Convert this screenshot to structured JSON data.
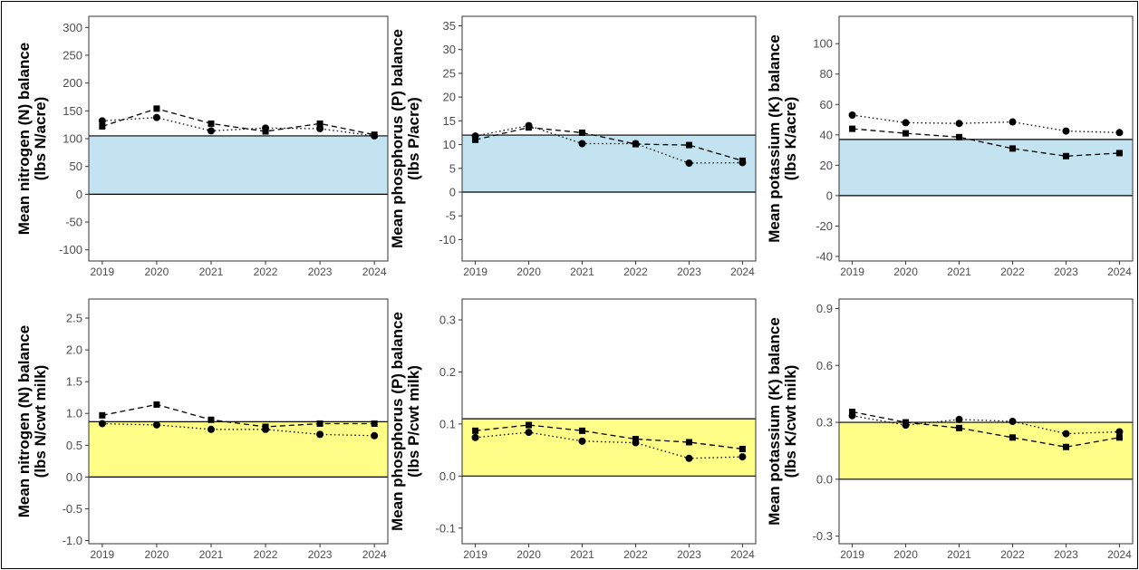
{
  "chart_data": [
    {
      "type": "line",
      "ylabel": "Mean nitrogen (N) balance",
      "ylabel2": "(lbs N/acre)",
      "ylim": [
        -120,
        320
      ],
      "yticks": [
        -100,
        -50,
        0,
        50,
        100,
        150,
        200,
        250,
        300
      ],
      "x": [
        "2019",
        "2020",
        "2021",
        "2022",
        "2023",
        "2024"
      ],
      "band": {
        "from": 0,
        "to": 105,
        "color": "#c3e3f0"
      },
      "series": [
        {
          "marker": "square",
          "line": "dashed",
          "values": [
            122,
            154,
            127,
            113,
            127,
            107
          ]
        },
        {
          "marker": "circle",
          "line": "dotted",
          "values": [
            132,
            138,
            114,
            119,
            118,
            105
          ]
        }
      ]
    },
    {
      "type": "line",
      "ylabel": "Mean phosphorus (P) balance",
      "ylabel2": "(lbs P/acre)",
      "ylim": [
        -14.5,
        37
      ],
      "yticks": [
        -10,
        -5,
        0,
        5,
        10,
        15,
        20,
        25,
        30,
        35
      ],
      "x": [
        "2019",
        "2020",
        "2021",
        "2022",
        "2023",
        "2024"
      ],
      "band": {
        "from": 0,
        "to": 12,
        "color": "#c3e3f0"
      },
      "series": [
        {
          "marker": "square",
          "line": "dashed",
          "values": [
            11,
            13.6,
            12.5,
            10.1,
            9.9,
            6.6
          ]
        },
        {
          "marker": "circle",
          "line": "dotted",
          "values": [
            11.8,
            14,
            10.2,
            10.2,
            6.1,
            6.2
          ]
        }
      ]
    },
    {
      "type": "line",
      "ylabel": "Mean potassium (K) balance",
      "ylabel2": "(lbs K/acre)",
      "ylim": [
        -43,
        118
      ],
      "yticks": [
        -40,
        -20,
        0,
        20,
        40,
        60,
        80,
        100
      ],
      "x": [
        "2019",
        "2020",
        "2021",
        "2022",
        "2023",
        "2024"
      ],
      "band": {
        "from": 0,
        "to": 37,
        "color": "#c3e3f0"
      },
      "series": [
        {
          "marker": "square",
          "line": "dashed",
          "values": [
            44,
            41,
            38.5,
            31,
            26,
            28
          ]
        },
        {
          "marker": "circle",
          "line": "dotted",
          "values": [
            53,
            48,
            47.5,
            48.5,
            42.5,
            41.5
          ]
        }
      ]
    },
    {
      "type": "line",
      "ylabel": "Mean nitrogen (N) balance",
      "ylabel2": "(lbs N/cwt milk)",
      "ylim": [
        -1.05,
        2.8
      ],
      "yticks": [
        -1.0,
        -0.5,
        0.0,
        0.5,
        1.0,
        1.5,
        2.0,
        2.5
      ],
      "x": [
        "2019",
        "2020",
        "2021",
        "2022",
        "2023",
        "2024"
      ],
      "band": {
        "from": 0,
        "to": 0.87,
        "color": "#ffff88"
      },
      "series": [
        {
          "marker": "square",
          "line": "dashed",
          "values": [
            0.97,
            1.14,
            0.9,
            0.79,
            0.84,
            0.84
          ]
        },
        {
          "marker": "circle",
          "line": "dotted",
          "values": [
            0.84,
            0.82,
            0.75,
            0.75,
            0.67,
            0.65
          ]
        }
      ]
    },
    {
      "type": "line",
      "ylabel": "Mean phosphorus (P) balance",
      "ylabel2": "(lbs P/cwt milk)",
      "ylim": [
        -0.13,
        0.34
      ],
      "yticks": [
        -0.1,
        0.0,
        0.1,
        0.2,
        0.3
      ],
      "x": [
        "2019",
        "2020",
        "2021",
        "2022",
        "2023",
        "2024"
      ],
      "band": {
        "from": 0,
        "to": 0.11,
        "color": "#ffff88"
      },
      "series": [
        {
          "marker": "square",
          "line": "dashed",
          "values": [
            0.087,
            0.098,
            0.087,
            0.071,
            0.065,
            0.052
          ]
        },
        {
          "marker": "circle",
          "line": "dotted",
          "values": [
            0.074,
            0.084,
            0.067,
            0.064,
            0.034,
            0.037
          ]
        }
      ]
    },
    {
      "type": "line",
      "ylabel": "Mean potassium (K) balance",
      "ylabel2": "(lbs K/cwt milk)",
      "ylim": [
        -0.34,
        0.95
      ],
      "yticks": [
        -0.3,
        0.0,
        0.3,
        0.6,
        0.9
      ],
      "x": [
        "2019",
        "2020",
        "2021",
        "2022",
        "2023",
        "2024"
      ],
      "band": {
        "from": 0,
        "to": 0.3,
        "color": "#ffff88"
      },
      "series": [
        {
          "marker": "square",
          "line": "dashed",
          "values": [
            0.355,
            0.3,
            0.27,
            0.22,
            0.17,
            0.22
          ]
        },
        {
          "marker": "circle",
          "line": "dotted",
          "values": [
            0.335,
            0.285,
            0.315,
            0.305,
            0.24,
            0.25
          ]
        }
      ]
    }
  ]
}
